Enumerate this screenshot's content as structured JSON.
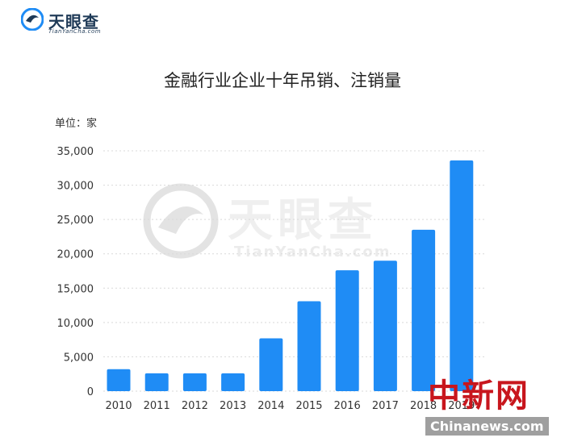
{
  "header": {
    "logo_text": "天眼查",
    "logo_sub": "TianYanCha.com"
  },
  "watermark": {
    "text": "天眼查",
    "sub": "TianYanCha.com"
  },
  "stamp": {
    "text": "中新网",
    "sub": "Chinanews.com"
  },
  "colors": {
    "bar": "#1f8cf5",
    "brand": "#1f3a57",
    "stamp": "#c8161d"
  },
  "chart_data": {
    "type": "bar",
    "title": "金融行业企业十年吊销、注销量",
    "unit_label": "单位：家",
    "categories": [
      "2010",
      "2011",
      "2012",
      "2013",
      "2014",
      "2015",
      "2016",
      "2017",
      "2018",
      "2019"
    ],
    "values": [
      3200,
      2600,
      2600,
      2600,
      7700,
      13100,
      17600,
      19000,
      23500,
      33600
    ],
    "yticks": [
      "0",
      "5,000",
      "10,000",
      "15,000",
      "20,000",
      "25,000",
      "30,000",
      "35,000"
    ],
    "ylim": [
      0,
      35000
    ],
    "grid": true
  }
}
